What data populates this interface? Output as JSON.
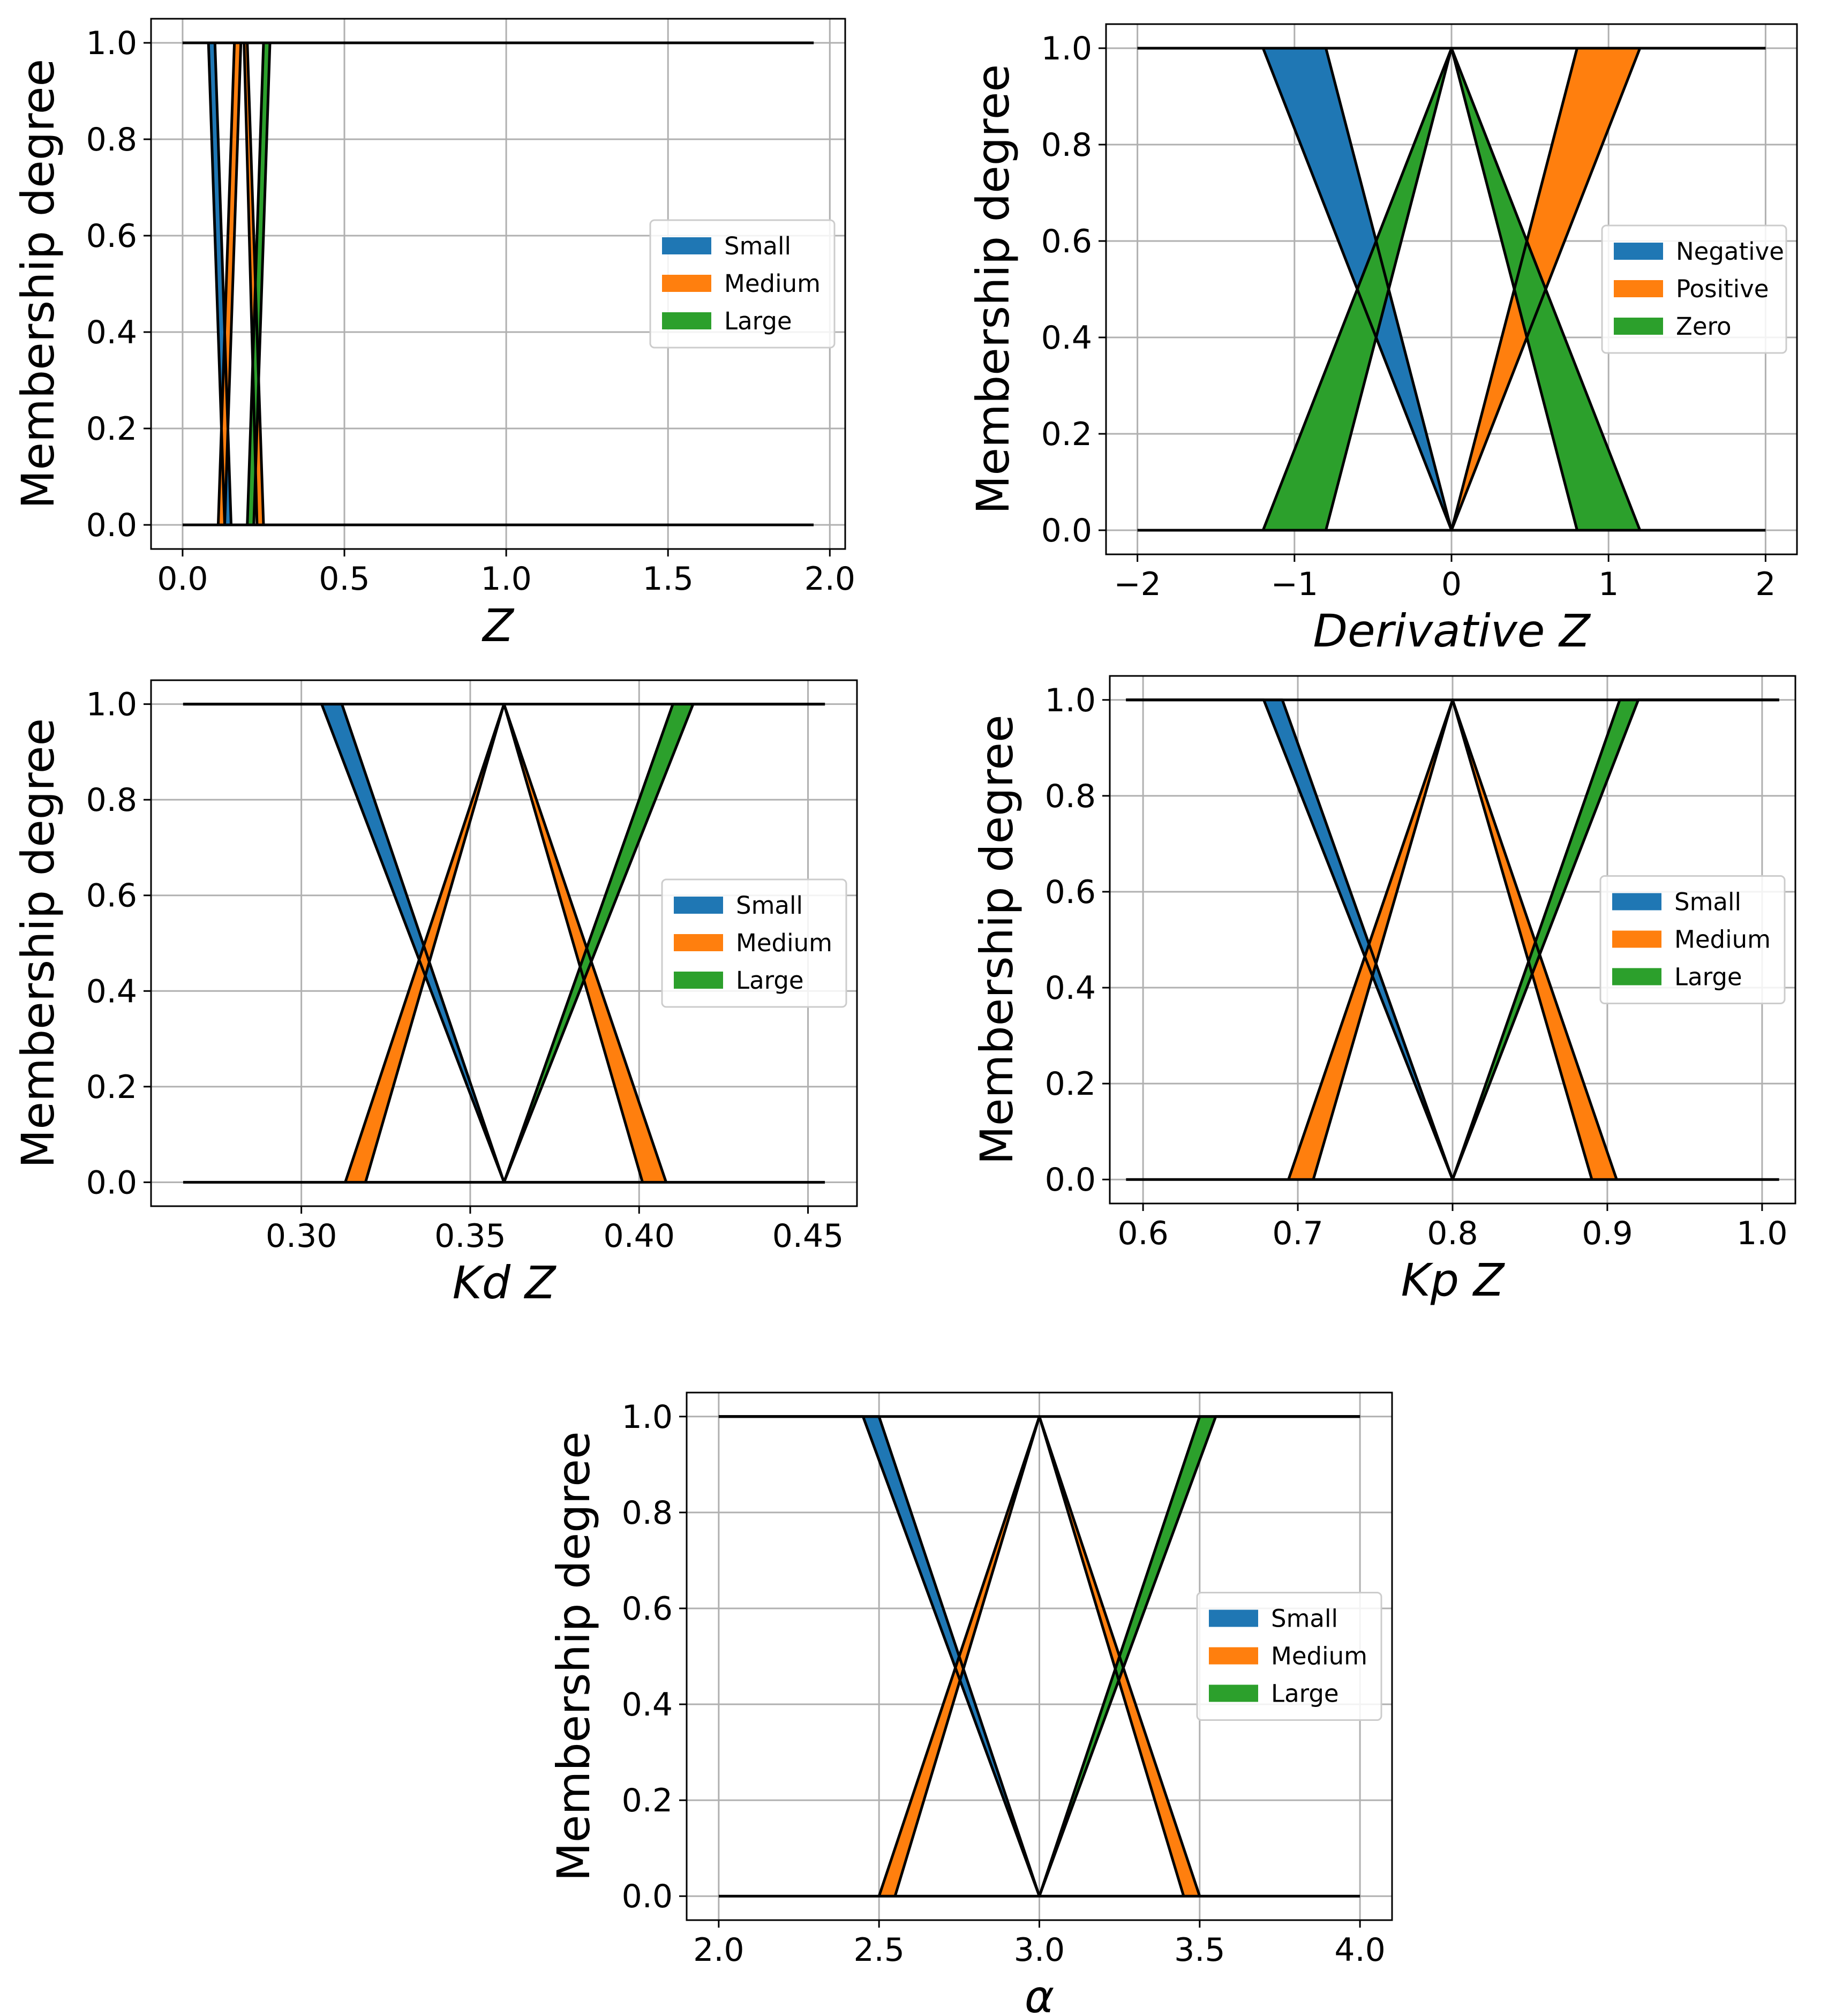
{
  "chart_data": [
    {
      "type": "area",
      "xlabel": "Z",
      "ylabel": "Membership degree",
      "xlim": [
        -0.0975,
        2.0475
      ],
      "ylim": [
        -0.05,
        1.05
      ],
      "xticks": [
        0.0,
        0.5,
        1.0,
        1.5,
        2.0
      ],
      "xtick_labels": [
        "0.0",
        "0.5",
        "1.0",
        "1.5",
        "2.0"
      ],
      "yticks": [
        0.0,
        0.2,
        0.4,
        0.6,
        0.8,
        1.0
      ],
      "ytick_labels": [
        "0.0",
        "0.2",
        "0.4",
        "0.6",
        "0.8",
        "1.0"
      ],
      "legend": {
        "loc": "center-right",
        "entries": [
          "Small",
          "Medium",
          "Large"
        ]
      },
      "baseline": {
        "x": [
          0.0,
          1.95
        ],
        "y": 1.0
      },
      "zeroline": {
        "x": [
          0.0,
          1.95
        ],
        "y": 0.0
      },
      "series": [
        {
          "name": "Small",
          "color": "#1f77b4",
          "upper": [
            [
              0.0,
              1.0
            ],
            [
              0.1,
              1.0
            ],
            [
              0.15,
              0.0
            ]
          ],
          "lower": [
            [
              0.0,
              1.0
            ],
            [
              0.08,
              1.0
            ],
            [
              0.13,
              0.0
            ]
          ]
        },
        {
          "name": "Medium",
          "color": "#ff7f0e",
          "upper": [
            [
              0.11,
              0.0
            ],
            [
              0.16,
              1.0
            ],
            [
              0.2,
              1.0
            ],
            [
              0.25,
              0.0
            ]
          ],
          "lower": [
            [
              0.13,
              0.0
            ],
            [
              0.18,
              1.0
            ],
            [
              0.19,
              1.0
            ],
            [
              0.23,
              0.0
            ]
          ]
        },
        {
          "name": "Large",
          "color": "#2ca02c",
          "upper": [
            [
              0.2,
              0.0
            ],
            [
              0.25,
              1.0
            ],
            [
              1.95,
              1.0
            ]
          ],
          "lower": [
            [
              0.22,
              0.0
            ],
            [
              0.27,
              1.0
            ],
            [
              1.95,
              1.0
            ]
          ]
        }
      ]
    },
    {
      "type": "area",
      "xlabel": "Derivative Z",
      "ylabel": "Membership degree",
      "xlim": [
        -2.2,
        2.2
      ],
      "ylim": [
        -0.05,
        1.05
      ],
      "xticks": [
        -2,
        -1,
        0,
        1,
        2
      ],
      "xtick_labels": [
        "−2",
        "−1",
        "0",
        "1",
        "2"
      ],
      "yticks": [
        0.0,
        0.2,
        0.4,
        0.6,
        0.8,
        1.0
      ],
      "ytick_labels": [
        "0.0",
        "0.2",
        "0.4",
        "0.6",
        "0.8",
        "1.0"
      ],
      "legend": {
        "loc": "center-right",
        "entries": [
          "Negative",
          "Positive",
          "Zero"
        ]
      },
      "baseline": {
        "x": [
          -2,
          2
        ],
        "y": 1.0
      },
      "zeroline": {
        "x": [
          -2,
          2
        ],
        "y": 0.0
      },
      "series": [
        {
          "name": "Negative",
          "color": "#1f77b4",
          "upper": [
            [
              -2.0,
              1.0
            ],
            [
              -0.8,
              1.0
            ],
            [
              0.0,
              0.0
            ]
          ],
          "lower": [
            [
              -2.0,
              1.0
            ],
            [
              -1.2,
              1.0
            ],
            [
              0.0,
              0.0
            ]
          ]
        },
        {
          "name": "Positive",
          "color": "#ff7f0e",
          "upper": [
            [
              0.0,
              0.0
            ],
            [
              0.8,
              1.0
            ],
            [
              2.0,
              1.0
            ]
          ],
          "lower": [
            [
              0.0,
              0.0
            ],
            [
              1.2,
              1.0
            ],
            [
              2.0,
              1.0
            ]
          ]
        },
        {
          "name": "Zero",
          "color": "#2ca02c",
          "upper": [
            [
              -1.2,
              0.0
            ],
            [
              0.0,
              1.0
            ],
            [
              1.2,
              0.0
            ]
          ],
          "lower": [
            [
              -0.8,
              0.0
            ],
            [
              0.0,
              1.0
            ],
            [
              0.8,
              0.0
            ]
          ]
        }
      ]
    },
    {
      "type": "area",
      "xlabel": "Kd Z",
      "ylabel": "Membership degree",
      "xlim": [
        0.2555,
        0.4645
      ],
      "ylim": [
        -0.05,
        1.05
      ],
      "xticks": [
        0.3,
        0.35,
        0.4,
        0.45
      ],
      "xtick_labels": [
        "0.30",
        "0.35",
        "0.40",
        "0.45"
      ],
      "yticks": [
        0.0,
        0.2,
        0.4,
        0.6,
        0.8,
        1.0
      ],
      "ytick_labels": [
        "0.0",
        "0.2",
        "0.4",
        "0.6",
        "0.8",
        "1.0"
      ],
      "legend": {
        "loc": "center-right",
        "entries": [
          "Small",
          "Medium",
          "Large"
        ]
      },
      "baseline": {
        "x": [
          0.265,
          0.455
        ],
        "y": 1.0
      },
      "zeroline": {
        "x": [
          0.265,
          0.455
        ],
        "y": 0.0
      },
      "series": [
        {
          "name": "Small",
          "color": "#1f77b4",
          "upper": [
            [
              0.265,
              1.0
            ],
            [
              0.312,
              1.0
            ],
            [
              0.36,
              0.0
            ]
          ],
          "lower": [
            [
              0.265,
              1.0
            ],
            [
              0.306,
              1.0
            ],
            [
              0.36,
              0.0
            ]
          ]
        },
        {
          "name": "Medium",
          "color": "#ff7f0e",
          "upper": [
            [
              0.313,
              0.0
            ],
            [
              0.36,
              1.0
            ],
            [
              0.408,
              0.0
            ]
          ],
          "lower": [
            [
              0.319,
              0.0
            ],
            [
              0.36,
              1.0
            ],
            [
              0.401,
              0.0
            ]
          ]
        },
        {
          "name": "Large",
          "color": "#2ca02c",
          "upper": [
            [
              0.36,
              0.0
            ],
            [
              0.41,
              1.0
            ],
            [
              0.455,
              1.0
            ]
          ],
          "lower": [
            [
              0.36,
              0.0
            ],
            [
              0.416,
              1.0
            ],
            [
              0.455,
              1.0
            ]
          ]
        }
      ]
    },
    {
      "type": "area",
      "xlabel": "Kp Z",
      "ylabel": "Membership degree",
      "xlim": [
        0.5785,
        1.0215
      ],
      "ylim": [
        -0.05,
        1.05
      ],
      "xticks": [
        0.6,
        0.7,
        0.8,
        0.9,
        1.0
      ],
      "xtick_labels": [
        "0.6",
        "0.7",
        "0.8",
        "0.9",
        "1.0"
      ],
      "yticks": [
        0.0,
        0.2,
        0.4,
        0.6,
        0.8,
        1.0
      ],
      "ytick_labels": [
        "0.0",
        "0.2",
        "0.4",
        "0.6",
        "0.8",
        "1.0"
      ],
      "legend": {
        "loc": "center-right",
        "entries": [
          "Small",
          "Medium",
          "Large"
        ]
      },
      "baseline": {
        "x": [
          0.589,
          1.011
        ],
        "y": 1.0
      },
      "zeroline": {
        "x": [
          0.589,
          1.011
        ],
        "y": 0.0
      },
      "series": [
        {
          "name": "Small",
          "color": "#1f77b4",
          "upper": [
            [
              0.589,
              1.0
            ],
            [
              0.69,
              1.0
            ],
            [
              0.8,
              0.0
            ]
          ],
          "lower": [
            [
              0.589,
              1.0
            ],
            [
              0.678,
              1.0
            ],
            [
              0.8,
              0.0
            ]
          ]
        },
        {
          "name": "Medium",
          "color": "#ff7f0e",
          "upper": [
            [
              0.694,
              0.0
            ],
            [
              0.8,
              1.0
            ],
            [
              0.906,
              0.0
            ]
          ],
          "lower": [
            [
              0.71,
              0.0
            ],
            [
              0.8,
              1.0
            ],
            [
              0.89,
              0.0
            ]
          ]
        },
        {
          "name": "Large",
          "color": "#2ca02c",
          "upper": [
            [
              0.8,
              0.0
            ],
            [
              0.908,
              1.0
            ],
            [
              1.011,
              1.0
            ]
          ],
          "lower": [
            [
              0.8,
              0.0
            ],
            [
              0.92,
              1.0
            ],
            [
              1.011,
              1.0
            ]
          ]
        }
      ]
    },
    {
      "type": "area",
      "xlabel": "α",
      "ylabel": "Membership degree",
      "xlim": [
        1.9,
        4.1
      ],
      "ylim": [
        -0.05,
        1.05
      ],
      "xticks": [
        2.0,
        2.5,
        3.0,
        3.5,
        4.0
      ],
      "xtick_labels": [
        "2.0",
        "2.5",
        "3.0",
        "3.5",
        "4.0"
      ],
      "yticks": [
        0.0,
        0.2,
        0.4,
        0.6,
        0.8,
        1.0
      ],
      "ytick_labels": [
        "0.0",
        "0.2",
        "0.4",
        "0.6",
        "0.8",
        "1.0"
      ],
      "legend": {
        "loc": "center-right",
        "entries": [
          "Small",
          "Medium",
          "Large"
        ]
      },
      "baseline": {
        "x": [
          2.0,
          4.0
        ],
        "y": 1.0
      },
      "zeroline": {
        "x": [
          2.0,
          4.0
        ],
        "y": 0.0
      },
      "series": [
        {
          "name": "Small",
          "color": "#1f77b4",
          "upper": [
            [
              2.0,
              1.0
            ],
            [
              2.5,
              1.0
            ],
            [
              3.0,
              0.0
            ]
          ],
          "lower": [
            [
              2.0,
              1.0
            ],
            [
              2.45,
              1.0
            ],
            [
              3.0,
              0.0
            ]
          ]
        },
        {
          "name": "Medium",
          "color": "#ff7f0e",
          "upper": [
            [
              2.5,
              0.0
            ],
            [
              3.0,
              1.0
            ],
            [
              3.5,
              0.0
            ]
          ],
          "lower": [
            [
              2.55,
              0.0
            ],
            [
              3.0,
              1.0
            ],
            [
              3.45,
              0.0
            ]
          ]
        },
        {
          "name": "Large",
          "color": "#2ca02c",
          "upper": [
            [
              3.0,
              0.0
            ],
            [
              3.5,
              1.0
            ],
            [
              4.0,
              1.0
            ]
          ],
          "lower": [
            [
              3.0,
              0.0
            ],
            [
              3.55,
              1.0
            ],
            [
              4.0,
              1.0
            ]
          ]
        }
      ]
    }
  ]
}
